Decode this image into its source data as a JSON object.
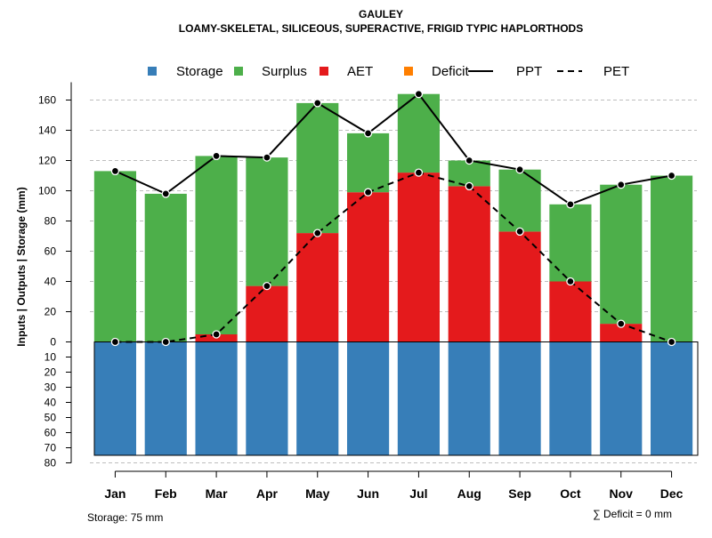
{
  "chart_data": {
    "type": "bar",
    "title": "GAULEY",
    "subtitle": "LOAMY-SKELETAL, SILICEOUS, SUPERACTIVE, FRIGID TYPIC HAPLORTHODS",
    "ylabel": "Inputs | Outputs | Storage    (mm)",
    "categories": [
      "Jan",
      "Feb",
      "Mar",
      "Apr",
      "May",
      "Jun",
      "Jul",
      "Aug",
      "Sep",
      "Oct",
      "Nov",
      "Dec"
    ],
    "y_upper_ticks": [
      0,
      20,
      40,
      60,
      80,
      100,
      120,
      140,
      160
    ],
    "y_lower_ticks": [
      10,
      20,
      30,
      40,
      50,
      60,
      70,
      80
    ],
    "ylim_upper": [
      0,
      170
    ],
    "ylim_lower": [
      0,
      80
    ],
    "gridlines": [
      20,
      40,
      60,
      80,
      100,
      120,
      140,
      160,
      -80
    ],
    "series": [
      {
        "name": "Storage",
        "color": "#377eb8",
        "values": [
          75,
          75,
          75,
          75,
          75,
          75,
          75,
          75,
          75,
          75,
          75,
          75
        ]
      },
      {
        "name": "Surplus",
        "color": "#4daf4a",
        "values": [
          113,
          98,
          118,
          85,
          86,
          39,
          52,
          17,
          41,
          51,
          92,
          110
        ]
      },
      {
        "name": "AET",
        "color": "#e41a1c",
        "values": [
          0,
          0,
          5,
          37,
          72,
          99,
          112,
          103,
          73,
          40,
          12,
          0
        ]
      },
      {
        "name": "Deficit",
        "color": "#ff7f00",
        "values": [
          0,
          0,
          0,
          0,
          0,
          0,
          0,
          0,
          0,
          0,
          0,
          0
        ]
      }
    ],
    "lines": [
      {
        "name": "PPT",
        "style": "solid",
        "values": [
          113,
          98,
          123,
          122,
          158,
          138,
          164,
          120,
          114,
          91,
          104,
          110
        ]
      },
      {
        "name": "PET",
        "style": "dashed",
        "values": [
          0,
          0,
          5,
          37,
          72,
          99,
          112,
          103,
          73,
          40,
          12,
          0
        ]
      }
    ],
    "legend": [
      "Storage",
      "Surplus",
      "AET",
      "Deficit",
      "PPT",
      "PET"
    ],
    "legend_position": "top",
    "storage_note": "Storage: 75 mm",
    "deficit_note": "∑ Deficit = 0 mm"
  }
}
